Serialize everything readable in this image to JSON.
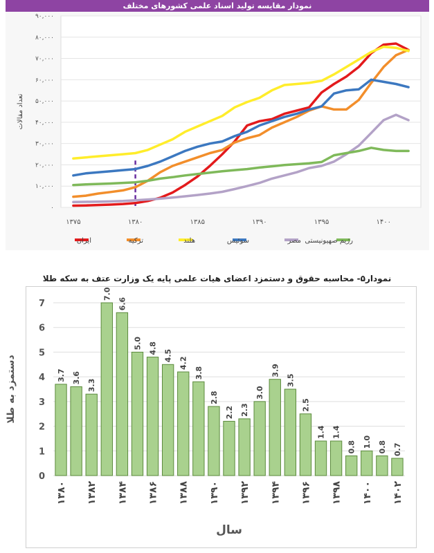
{
  "chart_data": [
    {
      "type": "line",
      "title": "نمودار مقایسه تولید اسناد علمی کشورهای مختلف",
      "ylabel": "تعداد مقالات",
      "xlabel": "",
      "x_ticks": [
        "۱۳۷۵",
        "۱۳۸۰",
        "۱۳۸۵",
        "۱۳۹۰",
        "۱۳۹۵",
        "۱۴۰۰"
      ],
      "y_ticks": [
        "۰",
        "۱۰,۰۰۰",
        "۲۰,۰۰۰",
        "۳۰,۰۰۰",
        "۴۰,۰۰۰",
        "۵۰,۰۰۰",
        "۶۰,۰۰۰",
        "۷۰,۰۰۰",
        "۸۰,۰۰۰",
        "۹۰,۰۰۰"
      ],
      "ylim": [
        0,
        90000
      ],
      "xlim": [
        1374,
        1403
      ],
      "grid": true,
      "legend_position": "bottom",
      "marker_year": 1380,
      "x": [
        1375,
        1376,
        1377,
        1378,
        1379,
        1380,
        1381,
        1382,
        1383,
        1384,
        1385,
        1386,
        1387,
        1388,
        1389,
        1390,
        1391,
        1392,
        1393,
        1394,
        1395,
        1396,
        1397,
        1398,
        1399,
        1400,
        1401,
        1402
      ],
      "series": [
        {
          "name": "ایران",
          "color": "#e31a1c",
          "values": [
            800,
            900,
            1100,
            1300,
            1600,
            2000,
            3000,
            4500,
            7000,
            10500,
            14500,
            19500,
            25000,
            31000,
            38500,
            40500,
            41500,
            44000,
            45500,
            47000,
            54000,
            58000,
            61500,
            66000,
            72500,
            76500,
            77000,
            74000
          ]
        },
        {
          "name": "ترکیه",
          "color": "#f28e2b",
          "values": [
            5000,
            5500,
            6500,
            7200,
            8000,
            9500,
            12500,
            16500,
            19500,
            21500,
            23500,
            25500,
            27000,
            30500,
            32500,
            34000,
            37500,
            40000,
            42500,
            45500,
            47500,
            46000,
            46000,
            50500,
            58500,
            66000,
            71500,
            74000
          ]
        },
        {
          "name": "هلند",
          "color": "#ffed2b",
          "values": [
            23000,
            23500,
            24000,
            24500,
            25000,
            25500,
            27000,
            29500,
            32000,
            35500,
            38000,
            40500,
            43000,
            47000,
            49500,
            51500,
            55000,
            57500,
            58000,
            58500,
            59500,
            62500,
            66000,
            69500,
            73000,
            75500,
            75000,
            73500
          ]
        },
        {
          "name": "سوئیس",
          "color": "#3c78c0",
          "values": [
            15000,
            16000,
            16500,
            17000,
            17500,
            18000,
            19500,
            21500,
            24000,
            26500,
            28500,
            30000,
            31000,
            33500,
            35500,
            38500,
            40500,
            42500,
            44000,
            46000,
            47500,
            53500,
            55000,
            55500,
            60000,
            59000,
            58000,
            56500
          ]
        },
        {
          "name": "مصر",
          "color": "#b3a2c7",
          "values": [
            2500,
            2600,
            2700,
            2800,
            3000,
            3300,
            3700,
            4100,
            4600,
            5200,
            5800,
            6500,
            7300,
            8600,
            10000,
            11500,
            13500,
            15000,
            16500,
            18500,
            19500,
            21500,
            25000,
            29000,
            35000,
            41000,
            43500,
            41000
          ]
        },
        {
          "name": "رژیم صهیونیستی",
          "color": "#7fb95a",
          "values": [
            10500,
            10800,
            11000,
            11200,
            11500,
            11800,
            12500,
            13500,
            14200,
            15000,
            15700,
            16300,
            17000,
            17500,
            18000,
            18700,
            19300,
            19900,
            20300,
            20700,
            21300,
            24500,
            25500,
            26500,
            28000,
            27000,
            26500,
            26500
          ]
        }
      ]
    },
    {
      "type": "bar",
      "title": "نمودار۵- محاسبه حقوق و دستمزد اعضای هیات علمی پایه یک وزارت عتف به سکه طلا",
      "ylabel": "دستمزد به طلا",
      "xlabel": "سال",
      "ylim": [
        0,
        7
      ],
      "y_ticks": [
        "0",
        "1",
        "2",
        "3",
        "4",
        "5",
        "6",
        "7"
      ],
      "grid": true,
      "bar_color": "#a9d18e",
      "categories": [
        "1380",
        "1381",
        "1382",
        "1383",
        "1384",
        "1385",
        "1386",
        "1387",
        "1388",
        "1389",
        "1390",
        "1391",
        "1392",
        "1393",
        "1394",
        "1395",
        "1396",
        "1397",
        "1398",
        "1399",
        "1400",
        "1401",
        "1402"
      ],
      "x_tick_labels": [
        "۱۳۸۰",
        "",
        "۱۳۸۲",
        "",
        "۱۳۸۴",
        "",
        "۱۳۸۶",
        "",
        "۱۳۸۸",
        "",
        "۱۳۹۰",
        "",
        "۱۳۹۲",
        "",
        "۱۳۹۴",
        "",
        "۱۳۹۶",
        "",
        "۱۳۹۸",
        "",
        "۱۴۰۰",
        "",
        "۱۴۰۲"
      ],
      "values": [
        3.7,
        3.6,
        3.3,
        7.0,
        6.6,
        5.0,
        4.8,
        4.5,
        4.2,
        3.8,
        2.8,
        2.2,
        2.3,
        3.0,
        3.9,
        3.5,
        2.5,
        1.4,
        1.4,
        0.8,
        1.0,
        0.8,
        0.7
      ],
      "data_labels": [
        "3.7",
        "3.6",
        "3.3",
        "7.0",
        "6.6",
        "5.0",
        "4.8",
        "4.5",
        "4.2",
        "3.8",
        "2.8",
        "2.2",
        "2.3",
        "3.0",
        "3.9",
        "3.5",
        "2.5",
        "1.4",
        "1.4",
        "0.8",
        "1.0",
        "0.8",
        "0.7"
      ]
    }
  ]
}
